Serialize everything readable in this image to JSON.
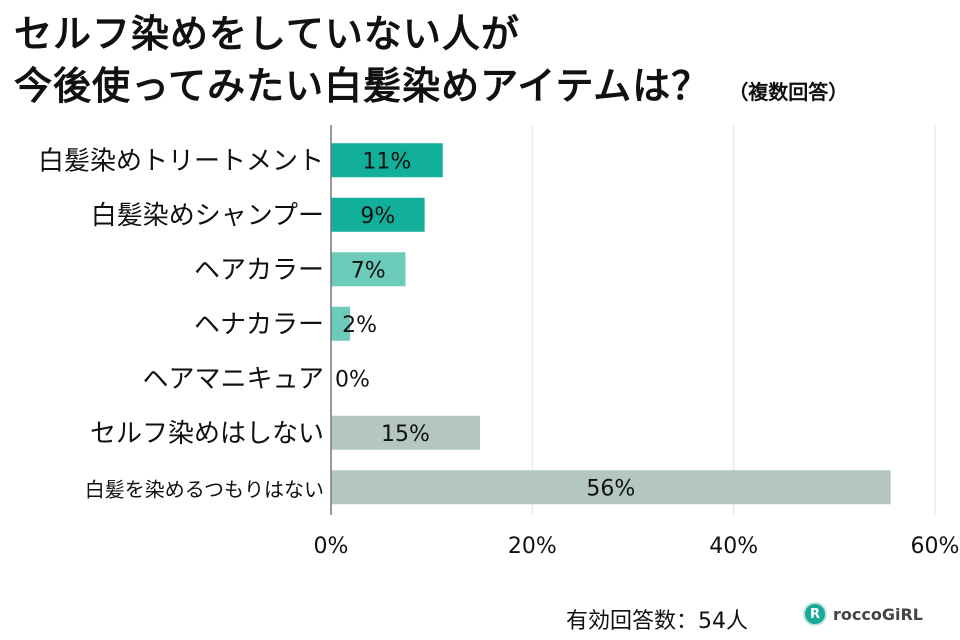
{
  "chart_data": {
    "type": "bar",
    "orientation": "horizontal",
    "title": "セルフ染めをしていない人が今後使ってみたい白髪染めアイテムは？",
    "subtitle": "（複数回答）",
    "categories": [
      "白髪染めトリートメント",
      "白髪染めシャンプー",
      "ヘアカラー",
      "ヘナカラー",
      "ヘアマニキュア",
      "セルフ染めはしない",
      "白髪を染めるつもりはない"
    ],
    "values": [
      11.1,
      9.3,
      7.4,
      1.9,
      0,
      14.8,
      55.6
    ],
    "data_labels": [
      "11%",
      "9%",
      "7%",
      "2%",
      "0%",
      "15%",
      "56%"
    ],
    "bar_colors": [
      "#12b09a",
      "#12b09a",
      "#6dcbbb",
      "#6dcbbb",
      "#6dcbbb",
      "#b3c6c2",
      "#b3c6c2"
    ],
    "xlim": [
      0,
      60
    ],
    "x_ticks": [
      "0%",
      "20%",
      "40%",
      "60%"
    ],
    "grid": true
  },
  "footer": {
    "respondents": "有効回答数：54人",
    "logo_text": "roccoGiRL",
    "logo_mark": "R"
  }
}
